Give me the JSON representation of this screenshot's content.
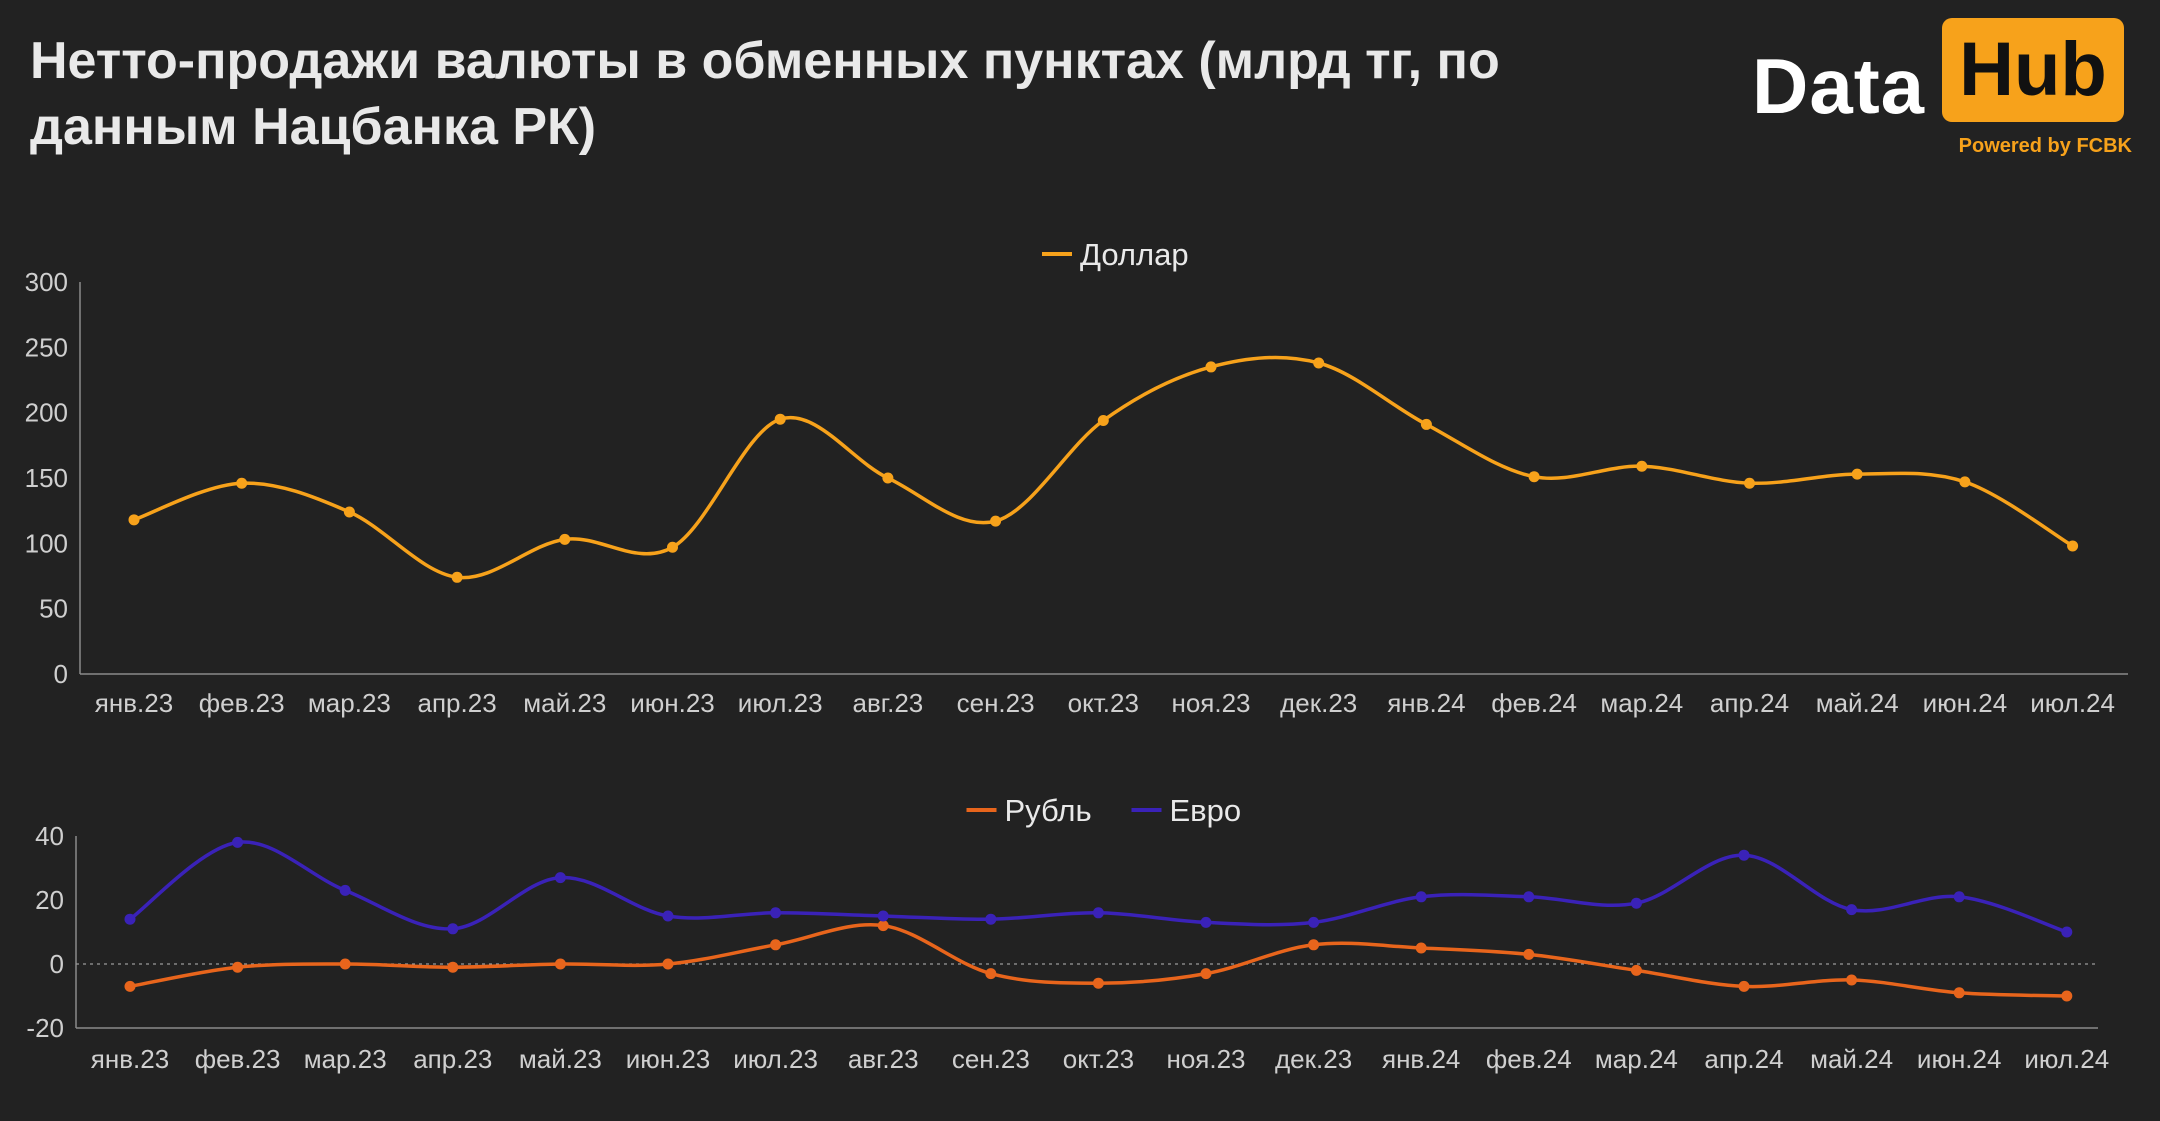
{
  "title": "Нетто-продажи валюты в обменных пунктах (млрд тг, по данным Нацбанка РК)",
  "logo": {
    "data_text": "Data",
    "hub_text": "Hub",
    "powered_text": "Powered by FCBK",
    "accent_color": "#f7a21b"
  },
  "chart_data": [
    {
      "type": "line",
      "categories": [
        "янв.23",
        "фев.23",
        "мар.23",
        "апр.23",
        "май.23",
        "июн.23",
        "июл.23",
        "авг.23",
        "сен.23",
        "окт.23",
        "ноя.23",
        "дек.23",
        "янв.24",
        "фев.24",
        "мар.24",
        "апр.24",
        "май.24",
        "июн.24",
        "июл.24"
      ],
      "series": [
        {
          "name": "Доллар",
          "color": "#f7a21b",
          "values": [
            118,
            146,
            124,
            74,
            103,
            97,
            195,
            150,
            117,
            194,
            235,
            238,
            191,
            151,
            159,
            146,
            153,
            147,
            98
          ]
        }
      ],
      "ylim": [
        0,
        300
      ],
      "yticks": [
        0,
        50,
        100,
        150,
        200,
        250,
        300
      ],
      "legend": "top-center",
      "grid": false
    },
    {
      "type": "line",
      "categories": [
        "янв.23",
        "фев.23",
        "мар.23",
        "апр.23",
        "май.23",
        "июн.23",
        "июл.23",
        "авг.23",
        "сен.23",
        "окт.23",
        "ноя.23",
        "дек.23",
        "янв.24",
        "фев.24",
        "мар.24",
        "апр.24",
        "май.24",
        "июн.24",
        "июл.24"
      ],
      "series": [
        {
          "name": "Рубль",
          "color": "#e8651c",
          "values": [
            -7,
            -1,
            0,
            -1,
            0,
            0,
            6,
            12,
            -3,
            -6,
            -3,
            6,
            5,
            3,
            -2,
            -7,
            -5,
            -9,
            -10
          ]
        },
        {
          "name": "Евро",
          "color": "#3a22b8",
          "values": [
            14,
            38,
            23,
            11,
            27,
            15,
            16,
            15,
            14,
            16,
            13,
            13,
            21,
            21,
            19,
            34,
            17,
            21,
            10
          ]
        }
      ],
      "ylim": [
        -20,
        40
      ],
      "yticks": [
        -20,
        0,
        20,
        40
      ],
      "zero_line": true,
      "legend": "top-center",
      "grid": false
    }
  ]
}
